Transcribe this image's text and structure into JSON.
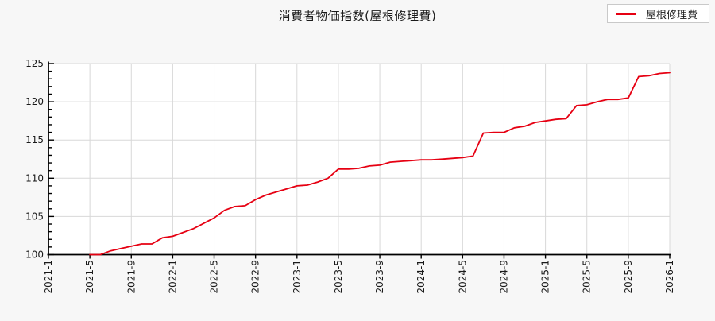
{
  "page": {
    "background_color": "#f7f7f7",
    "plot_background_color": "#ffffff",
    "grid_color": "#d8d8d8",
    "axis_color": "#000000"
  },
  "legend": {
    "label": "屋根修理費",
    "line_color": "#e60012"
  },
  "chart_data": {
    "type": "line",
    "title": "消費者物価指数(屋根修理費)",
    "xlabel": "",
    "ylabel": "",
    "ylim": [
      100,
      125
    ],
    "y_ticks": [
      100,
      105,
      110,
      115,
      120,
      125
    ],
    "y_minor_tick_step": 1,
    "x_range_months": [
      "2021-1",
      "2026-1"
    ],
    "x_tick_labels": [
      "2021-1",
      "2021-5",
      "2021-9",
      "2022-1",
      "2022-5",
      "2022-9",
      "2023-1",
      "2023-5",
      "2023-9",
      "2024-1",
      "2024-5",
      "2024-9",
      "2025-1",
      "2025-5",
      "2025-9",
      "2026-1"
    ],
    "grid": true,
    "legend_position": "top-right",
    "series": [
      {
        "name": "屋根修理費",
        "color": "#e60012",
        "points": [
          [
            "2021-5",
            100.0
          ],
          [
            "2021-6",
            100.0
          ],
          [
            "2021-7",
            100.5
          ],
          [
            "2021-8",
            100.8
          ],
          [
            "2021-9",
            101.1
          ],
          [
            "2021-10",
            101.4
          ],
          [
            "2021-11",
            101.4
          ],
          [
            "2021-12",
            102.2
          ],
          [
            "2022-1",
            102.4
          ],
          [
            "2022-2",
            102.9
          ],
          [
            "2022-3",
            103.4
          ],
          [
            "2022-4",
            104.1
          ],
          [
            "2022-5",
            104.8
          ],
          [
            "2022-6",
            105.8
          ],
          [
            "2022-7",
            106.3
          ],
          [
            "2022-8",
            106.4
          ],
          [
            "2022-9",
            107.2
          ],
          [
            "2022-10",
            107.8
          ],
          [
            "2022-11",
            108.2
          ],
          [
            "2022-12",
            108.6
          ],
          [
            "2023-1",
            109.0
          ],
          [
            "2023-2",
            109.1
          ],
          [
            "2023-3",
            109.5
          ],
          [
            "2023-4",
            110.0
          ],
          [
            "2023-5",
            111.2
          ],
          [
            "2023-6",
            111.2
          ],
          [
            "2023-7",
            111.3
          ],
          [
            "2023-8",
            111.6
          ],
          [
            "2023-9",
            111.7
          ],
          [
            "2023-10",
            112.1
          ],
          [
            "2023-11",
            112.2
          ],
          [
            "2023-12",
            112.3
          ],
          [
            "2024-1",
            112.4
          ],
          [
            "2024-2",
            112.4
          ],
          [
            "2024-3",
            112.5
          ],
          [
            "2024-4",
            112.6
          ],
          [
            "2024-5",
            112.7
          ],
          [
            "2024-6",
            112.9
          ],
          [
            "2024-7",
            115.9
          ],
          [
            "2024-8",
            116.0
          ],
          [
            "2024-9",
            116.0
          ],
          [
            "2024-10",
            116.6
          ],
          [
            "2024-11",
            116.8
          ],
          [
            "2024-12",
            117.3
          ],
          [
            "2025-1",
            117.5
          ],
          [
            "2025-2",
            117.7
          ],
          [
            "2025-3",
            117.8
          ],
          [
            "2025-4",
            119.5
          ],
          [
            "2025-5",
            119.6
          ],
          [
            "2025-6",
            120.0
          ],
          [
            "2025-7",
            120.3
          ],
          [
            "2025-8",
            120.3
          ],
          [
            "2025-9",
            120.5
          ],
          [
            "2025-10",
            123.3
          ],
          [
            "2025-11",
            123.4
          ],
          [
            "2025-12",
            123.7
          ],
          [
            "2026-1",
            123.8
          ]
        ]
      }
    ]
  }
}
